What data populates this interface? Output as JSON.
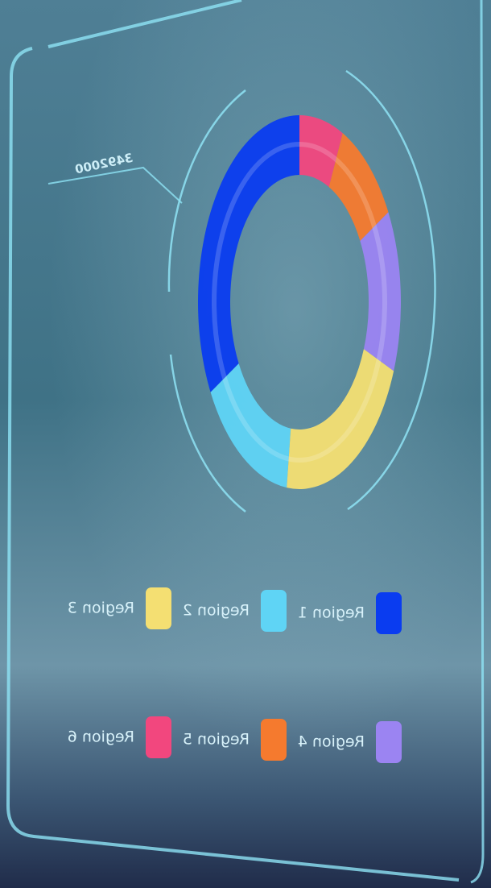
{
  "chart_data": {
    "type": "pie",
    "annotation": "3492000",
    "categories": [
      "Region 1",
      "Region 2",
      "Region 3",
      "Region 4",
      "Region 5",
      "Region 6"
    ],
    "values": [
      33,
      15,
      21,
      14,
      10,
      7
    ],
    "colors": [
      "#0a3cf0",
      "#5fd4f5",
      "#f4df72",
      "#9b84f2",
      "#f57a2e",
      "#f2477e"
    ]
  }
}
